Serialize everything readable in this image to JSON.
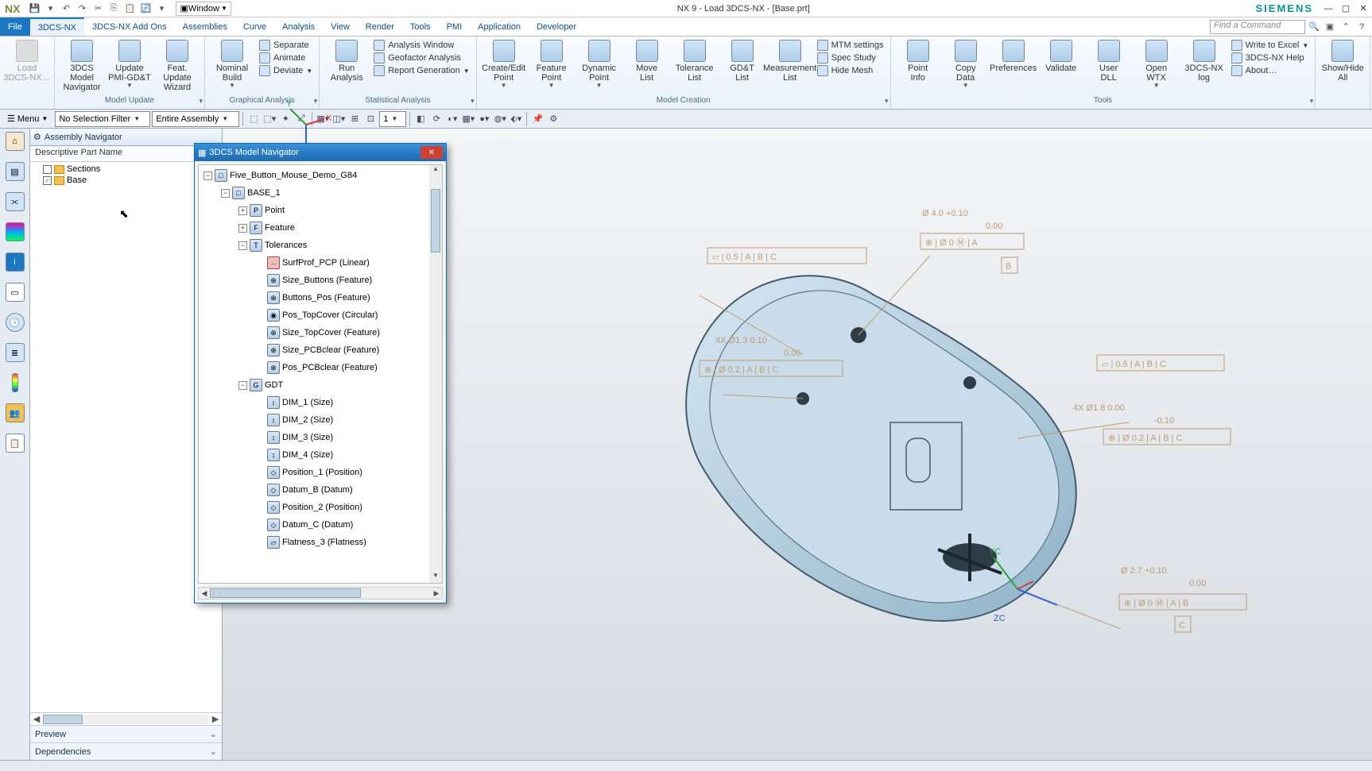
{
  "app": {
    "logo": "NX",
    "title": "NX 9 - Load 3DCS-NX - [Base.prt]",
    "brand": "SIEMENS",
    "window_dropdown_label": "Window",
    "find_placeholder": "Find a Command"
  },
  "menubar": {
    "tabs": [
      "File",
      "3DCS-NX",
      "3DCS-NX Add Ons",
      "Assemblies",
      "Curve",
      "Analysis",
      "View",
      "Render",
      "Tools",
      "PMI",
      "Application",
      "Developer"
    ],
    "active": "3DCS-NX"
  },
  "ribbon": {
    "groups": [
      {
        "label": "",
        "big": [
          {
            "t": "Load 3DCS-NX…",
            "disabled": true
          }
        ]
      },
      {
        "label": "Model Update",
        "big": [
          {
            "t": "3DCS Model Navigator"
          },
          {
            "t": "Update PMI-GD&T",
            "drop": true
          },
          {
            "t": "Feat. Update Wizard"
          }
        ]
      },
      {
        "label": "Graphical Analysis",
        "big": [
          {
            "t": "Nominal Build",
            "drop": true
          }
        ],
        "small": [
          {
            "t": "Separate"
          },
          {
            "t": "Animate"
          },
          {
            "t": "Deviate",
            "drop": true
          }
        ]
      },
      {
        "label": "Statistical Analysis",
        "big": [
          {
            "t": "Run Analysis"
          }
        ],
        "small": [
          {
            "t": "Analysis Window"
          },
          {
            "t": "Geofactor Analysis"
          },
          {
            "t": "Report Generation",
            "drop": true
          }
        ]
      },
      {
        "label": "Model Creation",
        "big": [
          {
            "t": "Create/Edit Point",
            "drop": true
          },
          {
            "t": "Feature Point",
            "drop": true
          },
          {
            "t": "Dynamic Point",
            "drop": true
          },
          {
            "t": "Move List"
          },
          {
            "t": "Tolerance List"
          },
          {
            "t": "GD&T List"
          },
          {
            "t": "Measurement List"
          }
        ],
        "small": [
          {
            "t": "MTM settings"
          },
          {
            "t": "Spec Study"
          },
          {
            "t": "Hide Mesh"
          }
        ]
      },
      {
        "label": "Tools",
        "big": [
          {
            "t": "Point Info"
          },
          {
            "t": "Copy Data",
            "drop": true
          },
          {
            "t": "Preferences"
          },
          {
            "t": "Validate"
          },
          {
            "t": "User DLL"
          },
          {
            "t": "Open WTX",
            "drop": true
          },
          {
            "t": "3DCS-NX log"
          }
        ],
        "small": [
          {
            "t": "Write to Excel",
            "drop": true
          },
          {
            "t": "3DCS-NX Help"
          },
          {
            "t": "About…"
          }
        ]
      },
      {
        "label": "",
        "big": [
          {
            "t": "Show/Hide All"
          }
        ]
      }
    ]
  },
  "toolbar2": {
    "menu_label": "Menu",
    "combo1": "No Selection Filter",
    "combo2": "Entire Assembly",
    "numbox": "1"
  },
  "asmnav": {
    "title": "Assembly Navigator",
    "column": "Descriptive Part Name",
    "items": [
      {
        "label": "Sections",
        "checked": false
      },
      {
        "label": "Base",
        "checked": true
      }
    ],
    "preview": "Preview",
    "deps": "Dependencies"
  },
  "floatwin": {
    "title": "3DCS Model Navigator",
    "tree": [
      {
        "ind": 0,
        "exp": "-",
        "ico": "□",
        "label": "Five_Button_Mouse_Demo_G84"
      },
      {
        "ind": 1,
        "exp": "-",
        "ico": "□",
        "label": "BASE_1"
      },
      {
        "ind": 2,
        "exp": "+",
        "ico": "P",
        "label": "Point"
      },
      {
        "ind": 2,
        "exp": "+",
        "ico": "F",
        "label": "Feature"
      },
      {
        "ind": 2,
        "exp": "-",
        "ico": "T",
        "label": "Tolerances"
      },
      {
        "ind": 3,
        "exp": "",
        "ico": "↔",
        "label": "SurfProf_PCP (Linear)",
        "red": true
      },
      {
        "ind": 3,
        "exp": "",
        "ico": "⊕",
        "label": "Size_Buttons (Feature)"
      },
      {
        "ind": 3,
        "exp": "",
        "ico": "⊕",
        "label": "Buttons_Pos (Feature)"
      },
      {
        "ind": 3,
        "exp": "",
        "ico": "◉",
        "label": "Pos_TopCover (Circular)"
      },
      {
        "ind": 3,
        "exp": "",
        "ico": "⊕",
        "label": "Size_TopCover (Feature)"
      },
      {
        "ind": 3,
        "exp": "",
        "ico": "⊕",
        "label": "Size_PCBclear (Feature)"
      },
      {
        "ind": 3,
        "exp": "",
        "ico": "⊕",
        "label": "Pos_PCBclear (Feature)"
      },
      {
        "ind": 2,
        "exp": "-",
        "ico": "G",
        "label": "GDT"
      },
      {
        "ind": 3,
        "exp": "",
        "ico": "↕",
        "label": "DIM_1 (Size)"
      },
      {
        "ind": 3,
        "exp": "",
        "ico": "↕",
        "label": "DIM_2 (Size)"
      },
      {
        "ind": 3,
        "exp": "",
        "ico": "↕",
        "label": "DIM_3 (Size)"
      },
      {
        "ind": 3,
        "exp": "",
        "ico": "↕",
        "label": "DIM_4 (Size)"
      },
      {
        "ind": 3,
        "exp": "",
        "ico": "◇",
        "label": "Position_1 (Position)"
      },
      {
        "ind": 3,
        "exp": "",
        "ico": "◇",
        "label": "Datum_B (Datum)"
      },
      {
        "ind": 3,
        "exp": "",
        "ico": "◇",
        "label": "Position_2 (Position)"
      },
      {
        "ind": 3,
        "exp": "",
        "ico": "◇",
        "label": "Datum_C (Datum)"
      },
      {
        "ind": 3,
        "exp": "",
        "ico": "▱",
        "label": "Flatness_3 (Flatness)"
      }
    ]
  },
  "canvas": {
    "annotations": {
      "a1": "Ø 4.0  +0.10 / 0.00",
      "a1_fcf": "⊕ | Ø 0 Ⓜ | A",
      "a1_datum": "B",
      "a2": "▱ | 0.5 | A | B | C",
      "a3": "4X Ø1.3  0.10 / 0.00",
      "a3_fcf": "⊕ | Ø 0.2 | A | B | C",
      "a4": "4X Ø1.8  0.00 / -0.10",
      "a4_fcf": "⊕ | Ø 0.2 | A | B | C",
      "a4_pre": "▱ | 0.5 | A | B | C",
      "a5": "Ø 2.7  +0.10 / 0.00",
      "a5_fcf": "⊕ | Ø 0 Ⓜ | A | B",
      "a5_datum": "C",
      "triad_yc": "YC",
      "triad_zc": "ZC"
    },
    "colors": {
      "part_fill": "#bcd8e6",
      "part_edge": "#445a6b",
      "part_dark": "#2f3d48",
      "annot": "#c19a6b",
      "axis_y": "#2aa52a",
      "axis_z": "#2a5fd6",
      "axis_x": "#d63a3a"
    }
  }
}
